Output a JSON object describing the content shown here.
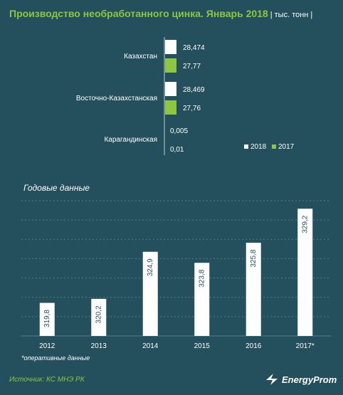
{
  "title": "Производство необработанного цинка. Январь 2018",
  "units": "| тыс. тонн |",
  "footnote": "*оперативные данные",
  "source": "Источник: КС МНЭ РК",
  "logo_text": "EnergyProm",
  "colors": {
    "background": "#23505c",
    "accent": "#8dc63f",
    "bar_2018": "#ffffff",
    "bar_2017": "#8dc63f"
  },
  "chart_data": [
    {
      "type": "bar",
      "orientation": "horizontal",
      "categories": [
        "Казахстан",
        "Восточно-Казахстанская",
        "Карагандинская"
      ],
      "series": [
        {
          "name": "2018",
          "values": [
            28.474,
            28.469,
            0.005
          ],
          "labels": [
            "28,474",
            "28,469",
            "0,005"
          ],
          "color": "#ffffff"
        },
        {
          "name": "2017",
          "values": [
            27.77,
            27.76,
            0.01
          ],
          "labels": [
            "27,77",
            "27,76",
            "0,01"
          ],
          "color": "#8dc63f"
        }
      ],
      "legend": [
        "2018",
        "2017"
      ],
      "legend_position": "bottom-right"
    },
    {
      "type": "bar",
      "title": "Годовые данные",
      "categories": [
        "2012",
        "2013",
        "2014",
        "2015",
        "2016",
        "2017*"
      ],
      "values": [
        319.8,
        320.2,
        324.9,
        323.8,
        325.8,
        329.2
      ],
      "labels": [
        "319,8",
        "320,2",
        "324,9",
        "323,8",
        "325,8",
        "329,2"
      ],
      "ylim": [
        316.5,
        330
      ],
      "grid": true,
      "color": "#ffffff"
    }
  ]
}
